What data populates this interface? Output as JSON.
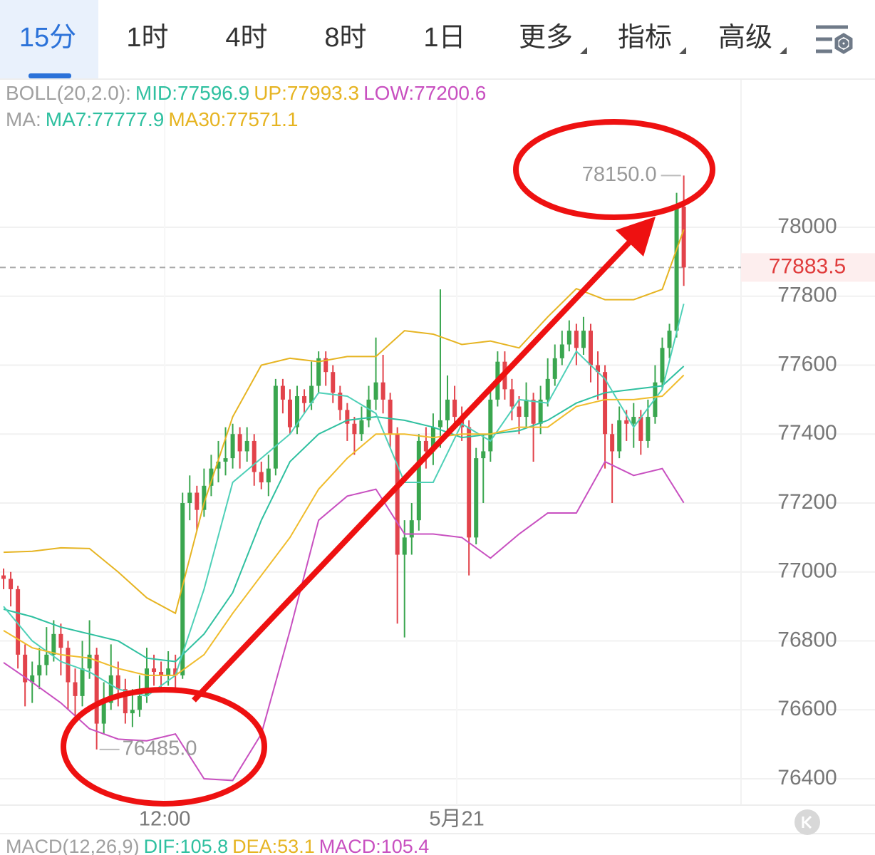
{
  "tabs": [
    "15分",
    "1时",
    "4时",
    "8时",
    "1日",
    "更多",
    "指标",
    "高级"
  ],
  "selected_tab": 0,
  "chart_data": {
    "type": "candlestick",
    "legend_rows": [
      [
        {
          "text": "BOLL(20,2.0):",
          "color": "#a0a0a0"
        },
        {
          "text": "MID:77596.9",
          "color": "#2fc0a0"
        },
        {
          "text": "UP:77993.3",
          "color": "#e6b422"
        },
        {
          "text": "LOW:77200.6",
          "color": "#c850c0"
        }
      ],
      [
        {
          "text": "MA:",
          "color": "#a0a0a0"
        },
        {
          "text": "MA7:77777.9",
          "color": "#2fc0a0"
        },
        {
          "text": "MA30:77571.1",
          "color": "#e6b422"
        }
      ]
    ],
    "macd_row": [
      {
        "text": "MACD(12,26,9)",
        "color": "#a0a0a0"
      },
      {
        "text": "DIF:105.8",
        "color": "#2fc0a0"
      },
      {
        "text": "DEA:53.1",
        "color": "#e6b422"
      },
      {
        "text": "MACD:105.4",
        "color": "#c850c0"
      }
    ],
    "candles": {
      "open": [
        76990,
        76980,
        76950,
        76760,
        76680,
        76700,
        76730,
        76760,
        76820,
        76780,
        76680,
        76640,
        76720,
        76760,
        76560,
        76620,
        76700,
        76660,
        76590,
        76600,
        76640,
        76720,
        76710,
        76700,
        76720,
        76700,
        77200,
        77230,
        77180,
        77250,
        77300,
        77320,
        77330,
        77400,
        77350,
        77380,
        77290,
        77260,
        77300,
        77540,
        77500,
        77420,
        77510,
        77490,
        77540,
        77620,
        77580,
        77520,
        77470,
        77430,
        77400,
        77440,
        77500,
        77550,
        77500,
        77400,
        77050,
        77100,
        77150,
        77380,
        77350,
        77420,
        77440,
        77500,
        77450,
        77420,
        77100,
        77330,
        77350,
        77500,
        77610,
        77530,
        77480,
        77450,
        77500,
        77430,
        77500,
        77560,
        77620,
        77660,
        77700,
        77650,
        77700,
        77600,
        77580,
        77400,
        77350,
        77440,
        77430,
        77450,
        77380,
        77450,
        77550,
        77650,
        77700,
        78060
      ],
      "high": [
        77010,
        77000,
        76960,
        76790,
        76740,
        76780,
        76840,
        76860,
        76850,
        76800,
        76720,
        76800,
        76860,
        76780,
        76680,
        76790,
        76740,
        76690,
        76660,
        76700,
        76780,
        76760,
        76740,
        76770,
        76760,
        77230,
        77280,
        77250,
        77300,
        77340,
        77380,
        77420,
        77430,
        77420,
        77420,
        77400,
        77320,
        77340,
        77560,
        77560,
        77530,
        77540,
        77530,
        77610,
        77640,
        77640,
        77600,
        77540,
        77490,
        77450,
        77480,
        77540,
        77680,
        77630,
        77520,
        77420,
        77150,
        77200,
        77400,
        77420,
        77460,
        77820,
        77570,
        77540,
        77480,
        77440,
        77360,
        77400,
        77540,
        77640,
        77640,
        77560,
        77510,
        77550,
        77520,
        77540,
        77620,
        77660,
        77700,
        77730,
        77720,
        77740,
        77720,
        77640,
        77600,
        77430,
        77480,
        77470,
        77490,
        77470,
        77500,
        77600,
        77680,
        77720,
        78100,
        78150
      ],
      "low": [
        76950,
        76900,
        76720,
        76610,
        76620,
        76660,
        76700,
        76740,
        76700,
        76600,
        76560,
        76610,
        76690,
        76485,
        76530,
        76600,
        76610,
        76560,
        76550,
        76580,
        76620,
        76670,
        76650,
        76670,
        76660,
        76690,
        77150,
        77120,
        77160,
        77220,
        77260,
        77280,
        77300,
        77300,
        77320,
        77250,
        77240,
        77220,
        77280,
        77460,
        77400,
        77400,
        77460,
        77470,
        77520,
        77540,
        77490,
        77440,
        77380,
        77340,
        77380,
        77420,
        77470,
        77460,
        77360,
        76850,
        76810,
        77050,
        77120,
        77300,
        77310,
        77360,
        77400,
        77420,
        77380,
        76990,
        77080,
        77200,
        77320,
        77480,
        77500,
        77440,
        77400,
        77420,
        77320,
        77400,
        77480,
        77540,
        77600,
        77640,
        77600,
        77630,
        77550,
        77500,
        77300,
        77200,
        77330,
        77380,
        77360,
        77340,
        77360,
        77430,
        77530,
        77620,
        77680,
        77830
      ],
      "close": [
        76980,
        76950,
        76760,
        76680,
        76700,
        76730,
        76760,
        76820,
        76780,
        76680,
        76640,
        76720,
        76760,
        76560,
        76620,
        76700,
        76660,
        76590,
        76600,
        76640,
        76720,
        76710,
        76700,
        76720,
        76700,
        77200,
        77230,
        77180,
        77250,
        77300,
        77320,
        77330,
        77400,
        77350,
        77380,
        77290,
        77260,
        77300,
        77540,
        77500,
        77420,
        77510,
        77490,
        77540,
        77620,
        77580,
        77520,
        77470,
        77430,
        77400,
        77440,
        77500,
        77550,
        77500,
        77400,
        77050,
        77100,
        77150,
        77380,
        77350,
        77420,
        77440,
        77500,
        77450,
        77420,
        77100,
        77330,
        77350,
        77500,
        77610,
        77530,
        77480,
        77450,
        77500,
        77430,
        77500,
        77560,
        77620,
        77660,
        77700,
        77650,
        77700,
        77600,
        77580,
        77400,
        77350,
        77440,
        77430,
        77450,
        77380,
        77450,
        77550,
        77650,
        77700,
        78060,
        77883.5
      ],
      "up_color": "#3aa64f",
      "down_color": "#e2434b"
    },
    "series": [
      {
        "color": "#e6b422",
        "x": [
          1,
          5,
          9,
          13,
          17,
          21,
          25,
          29,
          33,
          37,
          41,
          45,
          49,
          53,
          57,
          61,
          65,
          69,
          73,
          77,
          81,
          85,
          89,
          93,
          96
        ],
        "values": [
          77057,
          77060,
          77070,
          77068,
          77000,
          76925,
          76880,
          77200,
          77450,
          77600,
          77620,
          77610,
          77625,
          77625,
          77700,
          77690,
          77660,
          77670,
          77650,
          77740,
          77822,
          77790,
          77790,
          77820,
          77993.3
        ]
      },
      {
        "color": "#c850c0",
        "x": [
          1,
          5,
          9,
          13,
          17,
          21,
          25,
          29,
          33,
          37,
          41,
          45,
          49,
          53,
          57,
          61,
          65,
          69,
          73,
          77,
          81,
          85,
          89,
          93,
          96
        ],
        "values": [
          76737,
          76680,
          76620,
          76545,
          76515,
          76510,
          76530,
          76400,
          76395,
          76530,
          76830,
          77150,
          77220,
          77240,
          77110,
          77110,
          77100,
          77040,
          77110,
          77171,
          77171,
          77320,
          77280,
          77300,
          77200.6
        ]
      },
      {
        "color": "#2fc0a0",
        "x": [
          1,
          5,
          9,
          13,
          17,
          21,
          25,
          29,
          33,
          37,
          41,
          45,
          49,
          53,
          57,
          61,
          65,
          69,
          73,
          77,
          81,
          85,
          89,
          93,
          96
        ],
        "values": [
          76892,
          76870,
          76840,
          76820,
          76800,
          76750,
          76740,
          76820,
          76940,
          77150,
          77320,
          77400,
          77440,
          77450,
          77440,
          77420,
          77390,
          77400,
          77410,
          77440,
          77490,
          77520,
          77530,
          77540,
          77596.9
        ]
      },
      {
        "color": "#4fd0b8",
        "x": [
          1,
          5,
          9,
          13,
          17,
          21,
          25,
          29,
          33,
          37,
          41,
          45,
          49,
          53,
          57,
          61,
          65,
          69,
          73,
          77,
          81,
          85,
          89,
          93,
          96
        ],
        "values": [
          76900,
          76800,
          76740,
          76710,
          76660,
          76640,
          76700,
          76950,
          77260,
          77330,
          77400,
          77520,
          77510,
          77460,
          77260,
          77260,
          77430,
          77380,
          77500,
          77490,
          77640,
          77560,
          77420,
          77530,
          77777.9
        ]
      },
      {
        "color": "#f0bc2c",
        "x": [
          1,
          5,
          9,
          13,
          17,
          21,
          25,
          29,
          33,
          37,
          41,
          45,
          49,
          53,
          57,
          61,
          65,
          69,
          73,
          77,
          81,
          85,
          89,
          93,
          96
        ],
        "values": [
          76830,
          76780,
          76760,
          76750,
          76720,
          76700,
          76700,
          76760,
          76880,
          76990,
          77100,
          77240,
          77330,
          77400,
          77400,
          77390,
          77400,
          77400,
          77420,
          77420,
          77480,
          77500,
          77500,
          77510,
          77571.1
        ]
      }
    ],
    "xlim": [
      0.5,
      104
    ],
    "xticks": [
      {
        "value": 23.5,
        "label": "12:00"
      },
      {
        "value": 64.3,
        "label": "5月21"
      }
    ],
    "ylim": [
      76323.5,
      78421.7
    ],
    "yticks": [
      76400,
      76600,
      76800,
      77000,
      77200,
      77400,
      77600,
      77800,
      78000
    ],
    "grid": true,
    "max_label": {
      "value": 78150,
      "label": "78150.0"
    },
    "min_label": {
      "value": 76485,
      "label": "76485.0"
    },
    "last_price": {
      "value": 77883.5,
      "label": "77883.5"
    }
  }
}
